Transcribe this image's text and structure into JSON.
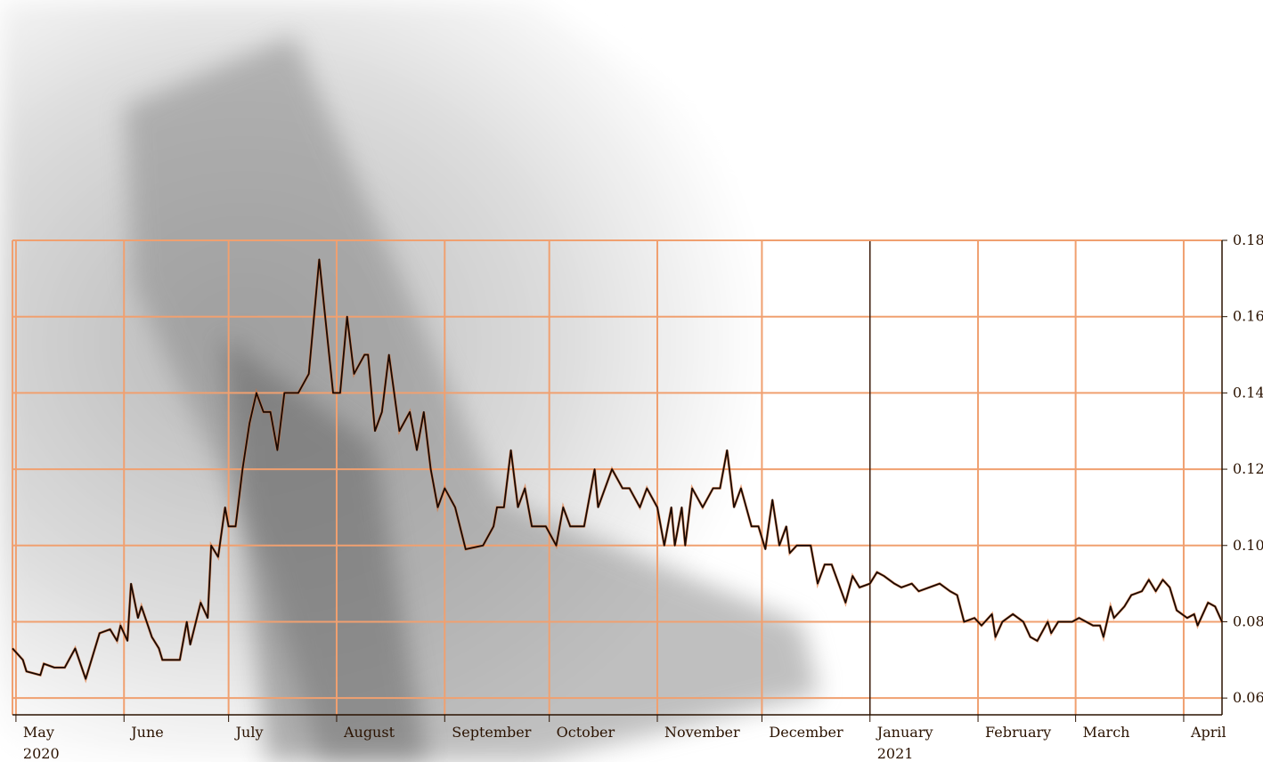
{
  "chart_data": {
    "type": "line",
    "x": [
      "2020-04-30",
      "2020-05-03",
      "2020-05-04",
      "2020-05-08",
      "2020-05-09",
      "2020-05-12",
      "2020-05-15",
      "2020-05-18",
      "2020-05-21",
      "2020-05-25",
      "2020-05-28",
      "2020-05-30",
      "2020-05-31",
      "2020-06-02",
      "2020-06-03",
      "2020-06-05",
      "2020-06-06",
      "2020-06-09",
      "2020-06-11",
      "2020-06-12",
      "2020-06-15",
      "2020-06-17",
      "2020-06-19",
      "2020-06-20",
      "2020-06-23",
      "2020-06-25",
      "2020-06-26",
      "2020-06-28",
      "2020-06-30",
      "2020-07-01",
      "2020-07-03",
      "2020-07-05",
      "2020-07-07",
      "2020-07-09",
      "2020-07-11",
      "2020-07-13",
      "2020-07-15",
      "2020-07-17",
      "2020-07-21",
      "2020-07-24",
      "2020-07-27",
      "2020-07-31",
      "2020-08-02",
      "2020-08-04",
      "2020-08-06",
      "2020-08-09",
      "2020-08-10",
      "2020-08-12",
      "2020-08-14",
      "2020-08-16",
      "2020-08-19",
      "2020-08-22",
      "2020-08-24",
      "2020-08-26",
      "2020-08-28",
      "2020-08-30",
      "2020-09-01",
      "2020-09-04",
      "2020-09-07",
      "2020-09-12",
      "2020-09-15",
      "2020-09-16",
      "2020-09-18",
      "2020-09-20",
      "2020-09-22",
      "2020-09-24",
      "2020-09-26",
      "2020-09-30",
      "2020-10-03",
      "2020-10-05",
      "2020-10-07",
      "2020-10-11",
      "2020-10-14",
      "2020-10-15",
      "2020-10-19",
      "2020-10-22",
      "2020-10-24",
      "2020-10-27",
      "2020-10-29",
      "2020-11-01",
      "2020-11-03",
      "2020-11-05",
      "2020-11-06",
      "2020-11-08",
      "2020-11-09",
      "2020-11-11",
      "2020-11-14",
      "2020-11-17",
      "2020-11-19",
      "2020-11-21",
      "2020-11-23",
      "2020-11-25",
      "2020-11-28",
      "2020-11-30",
      "2020-12-02",
      "2020-12-04",
      "2020-12-06",
      "2020-12-08",
      "2020-12-09",
      "2020-12-11",
      "2020-12-15",
      "2020-12-17",
      "2020-12-19",
      "2020-12-21",
      "2020-12-23",
      "2020-12-25",
      "2020-12-27",
      "2020-12-29",
      "2021-01-01",
      "2021-01-03",
      "2021-01-05",
      "2021-01-08",
      "2021-01-10",
      "2021-01-13",
      "2021-01-15",
      "2021-01-18",
      "2021-01-21",
      "2021-01-24",
      "2021-01-26",
      "2021-01-28",
      "2021-01-31",
      "2021-02-02",
      "2021-02-05",
      "2021-02-06",
      "2021-02-08",
      "2021-02-11",
      "2021-02-14",
      "2021-02-16",
      "2021-02-18",
      "2021-02-21",
      "2021-02-22",
      "2021-02-24",
      "2021-02-28",
      "2021-03-02",
      "2021-03-06",
      "2021-03-08",
      "2021-03-09",
      "2021-03-11",
      "2021-03-12",
      "2021-03-15",
      "2021-03-17",
      "2021-03-20",
      "2021-03-22",
      "2021-03-24",
      "2021-03-26",
      "2021-03-28",
      "2021-03-30",
      "2021-04-02",
      "2021-04-04",
      "2021-04-05",
      "2021-04-08",
      "2021-04-10",
      "2021-04-12"
    ],
    "series": [
      {
        "color": "#1a0800",
        "values": [
          0.073,
          0.07,
          0.067,
          0.066,
          0.069,
          0.068,
          0.068,
          0.073,
          0.065,
          0.077,
          0.078,
          0.075,
          0.079,
          0.075,
          0.09,
          0.081,
          0.084,
          0.076,
          0.073,
          0.07,
          0.07,
          0.07,
          0.08,
          0.074,
          0.085,
          0.081,
          0.1,
          0.097,
          0.11,
          0.105,
          0.105,
          0.12,
          0.132,
          0.14,
          0.135,
          0.135,
          0.125,
          0.14,
          0.14,
          0.145,
          0.175,
          0.14,
          0.14,
          0.16,
          0.145,
          0.15,
          0.15,
          0.13,
          0.135,
          0.15,
          0.13,
          0.135,
          0.125,
          0.135,
          0.12,
          0.11,
          0.115,
          0.11,
          0.099,
          0.1,
          0.105,
          0.11,
          0.11,
          0.125,
          0.11,
          0.115,
          0.105,
          0.105,
          0.1,
          0.11,
          0.105,
          0.105,
          0.12,
          0.11,
          0.12,
          0.115,
          0.115,
          0.11,
          0.115,
          0.11,
          0.1,
          0.11,
          0.1,
          0.11,
          0.1,
          0.115,
          0.11,
          0.115,
          0.115,
          0.125,
          0.11,
          0.115,
          0.105,
          0.105,
          0.099,
          0.112,
          0.1,
          0.105,
          0.098,
          0.1,
          0.1,
          0.09,
          0.095,
          0.095,
          0.09,
          0.085,
          0.092,
          0.089,
          0.09,
          0.093,
          0.092,
          0.09,
          0.089,
          0.09,
          0.088,
          0.089,
          0.09,
          0.088,
          0.087,
          0.08,
          0.081,
          0.079,
          0.082,
          0.076,
          0.08,
          0.082,
          0.08,
          0.076,
          0.075,
          0.08,
          0.077,
          0.08,
          0.08,
          0.081,
          0.079,
          0.079,
          0.076,
          0.084,
          0.081,
          0.084,
          0.087,
          0.088,
          0.091,
          0.088,
          0.091,
          0.089,
          0.083,
          0.081,
          0.082,
          0.079,
          0.085,
          0.084,
          0.08
        ]
      }
    ],
    "xlim": [
      "2020-04-30",
      "2021-04-12"
    ],
    "xticks": [
      {
        "value": "2020-05-01",
        "label": "May 2020"
      },
      {
        "value": "2020-06-01",
        "label": "June"
      },
      {
        "value": "2020-07-01",
        "label": "July"
      },
      {
        "value": "2020-08-01",
        "label": "August"
      },
      {
        "value": "2020-09-01",
        "label": "September"
      },
      {
        "value": "2020-10-01",
        "label": "October"
      },
      {
        "value": "2020-11-01",
        "label": "November"
      },
      {
        "value": "2020-12-01",
        "label": "December"
      },
      {
        "value": "2021-01-01",
        "label": "January 2021"
      },
      {
        "value": "2021-02-01",
        "label": "February"
      },
      {
        "value": "2021-03-01",
        "label": "March"
      },
      {
        "value": "2021-04-01",
        "label": "April"
      }
    ],
    "ylim": [
      0.0556,
      0.18
    ],
    "yticks": [
      0.06,
      0.08,
      {
        "value": 0.1,
        "label": "0.10"
      },
      0.12,
      0.14,
      0.16,
      0.18
    ],
    "grid": true,
    "grid_color": "#f0a070"
  }
}
